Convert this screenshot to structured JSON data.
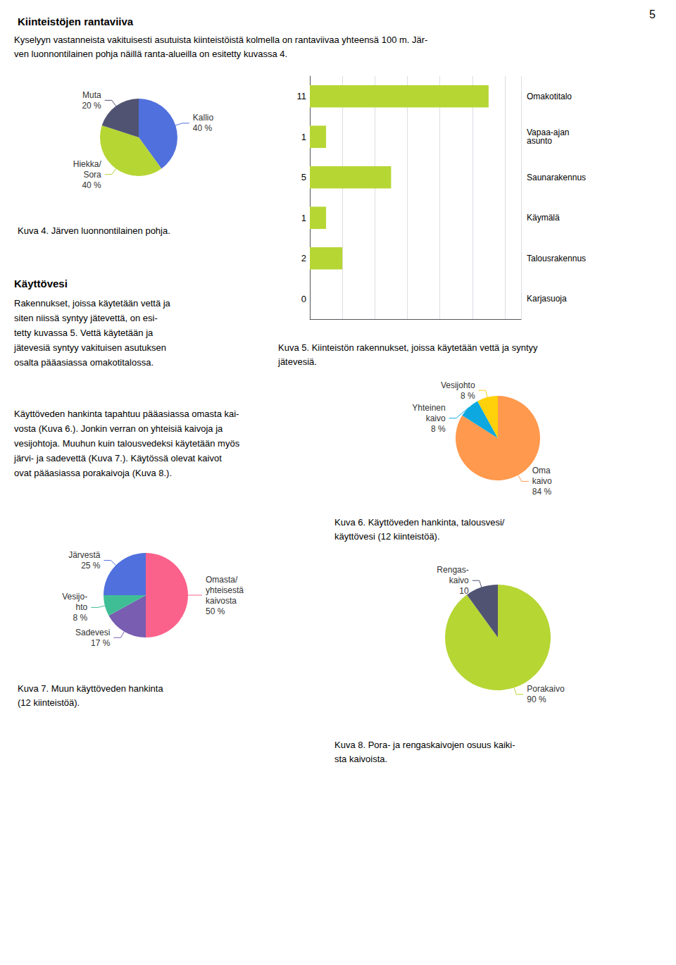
{
  "title": "Kiinteistöjen rantaviiva",
  "annotations": [
    [
      "5"
    ],
    [
      "Kyselyyn vastanneista vakituisesti asutuista kiinteistöistä kolmella on rantaviivaa yhteensä 100 m. Jär-",
      "ven luonnontilainen pohja näillä ranta-alueilla on esitetty kuvassa 4."
    ],
    [
      "Käyttövesi"
    ],
    [
      "Rakennukset, joissa käytetään vettä ja",
      "siten niissä syntyy jätevettä, on esi-",
      "tetty kuvassa 5. Vettä käytetään ja",
      "jätevesiä syntyy vakituisen asutuksen",
      "osalta pääasiassa omakotitalossa."
    ],
    [
      "Käyttöveden hankinta tapahtuu pääasiassa omasta kai-",
      "vosta (Kuva 6.). Jonkin verran on yhteisiä kaivoja ja",
      "vesijohtoja. Muuhun kuin talousvedeksi käytetään myös",
      "järvi- ja sadevettä (Kuva 7.). Käytössä olevat kaivot",
      "ovat pääasiassa porakaivoja (Kuva 8.)."
    ]
  ],
  "chart_data": [
    {
      "type": "pie",
      "title": "Kuva 4. Järven luonnontilainen pohja.",
      "categories": [
        "Kallio",
        "Hiekka/\nSora",
        "Muta"
      ],
      "values": [
        40,
        40,
        20
      ],
      "value_labels": [
        "40 %",
        "40 %",
        "20 %"
      ],
      "data_labels": true
    },
    {
      "type": "bar",
      "title": "Kuva 5. Kiinteistön rakennukset, joissa käytetään vettä ja syntyy\njätevesiä.",
      "orientation": "horizontal",
      "categories": [
        "Omakotitalo",
        "Vapaa-ajan\nasunto",
        "Saunarakennus",
        "Käymälä",
        "Talousrakennus",
        "Karjasuoja"
      ],
      "values": [
        11,
        1,
        5,
        1,
        2,
        0
      ],
      "xlim": [
        0,
        13
      ],
      "xticks": [
        0,
        2,
        4,
        6,
        8,
        10,
        12
      ],
      "grid": true,
      "tick_labels": "y",
      "data_labels": true
    },
    {
      "type": "pie",
      "title": "Kuva 6. Käyttöveden hankinta, talousvesi/\nkäyttövesi (12 kiinteistöä).",
      "categories": [
        "Oma\nkaivo",
        "Yhteinen\nkaivo",
        "Vesijohto"
      ],
      "values": [
        84,
        8,
        8
      ],
      "value_labels": [
        "84 %",
        "8 %",
        "8 %"
      ],
      "data_labels": true
    },
    {
      "type": "pie",
      "title": "Kuva 7. Muun käyttöveden hankinta\n(12 kiinteistöä).",
      "categories": [
        "Omasta/\nyhteisestä\nkaivosta",
        "Sadevesi",
        "Vesijo-\nhto",
        "Järvestä"
      ],
      "values": [
        50,
        17,
        8,
        25
      ],
      "value_labels": [
        "50 %",
        "17 %",
        "8 %",
        "25 %"
      ],
      "data_labels": true
    },
    {
      "type": "pie",
      "title": "Kuva 8. Pora- ja rengaskaivojen osuus kaiki-\nsta kaivoista.",
      "categories": [
        "Porakaivo",
        "Rengas-\nkaivo"
      ],
      "values": [
        90,
        10
      ],
      "value_labels": [
        "90 %",
        "10"
      ],
      "data_labels": true
    }
  ]
}
